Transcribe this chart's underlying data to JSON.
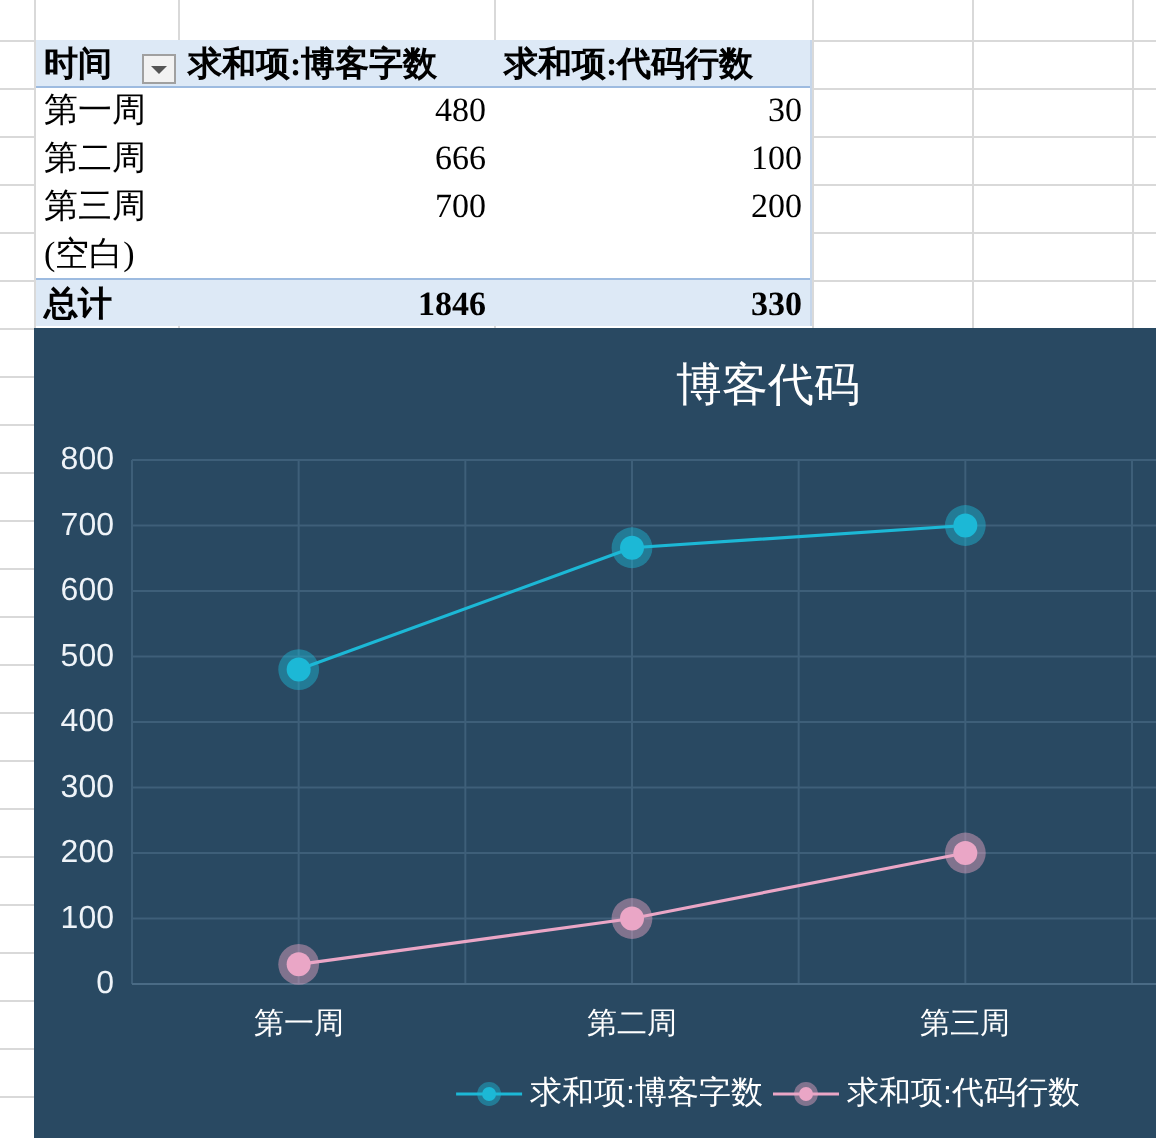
{
  "chart_data": [
    {
      "type": "other",
      "ylabel": "时间",
      "categories": [
        "求和项:博客字数",
        "求和项:代码行数"
      ],
      "y_categories": [
        "第一周",
        "第二周",
        "第三周",
        "(空白)",
        "总计"
      ],
      "cell_labels": [
        [
          "480",
          "30"
        ],
        [
          "666",
          "100"
        ],
        [
          "700",
          "200"
        ],
        [
          null,
          null
        ],
        [
          "1846",
          "330"
        ]
      ]
    },
    {
      "type": "line",
      "title": "博客代码",
      "categories": [
        "第一周",
        "第二周",
        "第三周"
      ],
      "series": [
        {
          "name": "求和项:博客字数",
          "color": "#1cb8d6",
          "values": [
            480,
            666,
            700
          ]
        },
        {
          "name": "求和项:代码行数",
          "color": "#eaa6c6",
          "values": [
            30,
            100,
            200
          ]
        }
      ],
      "ylim": [
        0,
        800
      ],
      "yticks": [
        0,
        100,
        200,
        300,
        400,
        500,
        600,
        700,
        800
      ],
      "grid": true,
      "legend": "bottom",
      "marker": "circle"
    }
  ]
}
